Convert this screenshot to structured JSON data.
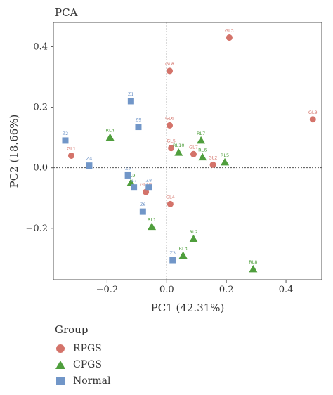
{
  "chart_data": {
    "type": "scatter",
    "title": "PCA",
    "xlabel": "PC1 (42.31%)",
    "ylabel": "PC2 (18.66%)",
    "xlim": [
      -0.38,
      0.52
    ],
    "ylim": [
      -0.37,
      0.48
    ],
    "xticks": [
      -0.2,
      0.0,
      0.2,
      0.4
    ],
    "xtick_labels": [
      "−0.2",
      "0.0",
      "0.2",
      "0.4"
    ],
    "yticks": [
      -0.2,
      0.0,
      0.2,
      0.4
    ],
    "ytick_labels": [
      "−0.2",
      "0.0",
      "0.2",
      "0.4"
    ],
    "grid": false,
    "reference_lines": {
      "x": 0,
      "y": 0,
      "style": "dotted"
    },
    "legend": {
      "title": "Group",
      "placement": "bottom-left"
    },
    "series": [
      {
        "name": "RPGS",
        "marker": "circle",
        "color": "#d4736a",
        "points": [
          {
            "label": "GL3",
            "x": 0.21,
            "y": 0.43
          },
          {
            "label": "GL8",
            "x": 0.01,
            "y": 0.32
          },
          {
            "label": "GL6",
            "x": 0.01,
            "y": 0.14
          },
          {
            "label": "GL9",
            "x": 0.49,
            "y": 0.16
          },
          {
            "label": "GL1",
            "x": -0.32,
            "y": 0.04
          },
          {
            "label": "GL5",
            "x": 0.015,
            "y": 0.065
          },
          {
            "label": "GL7",
            "x": 0.09,
            "y": 0.045
          },
          {
            "label": "GL2",
            "x": 0.155,
            "y": 0.01
          },
          {
            "label": "GL4",
            "x": 0.012,
            "y": -0.12
          },
          {
            "label": "GL10",
            "x": -0.07,
            "y": -0.08
          }
        ]
      },
      {
        "name": "CPGS",
        "marker": "triangle",
        "color": "#4f9e3c",
        "points": [
          {
            "label": "RL4",
            "x": -0.19,
            "y": 0.1
          },
          {
            "label": "RL7",
            "x": 0.115,
            "y": 0.09
          },
          {
            "label": "RL10",
            "x": 0.04,
            "y": 0.05
          },
          {
            "label": "RL6",
            "x": 0.12,
            "y": 0.035
          },
          {
            "label": "RL5",
            "x": 0.195,
            "y": 0.018
          },
          {
            "label": "RL9",
            "x": -0.12,
            "y": -0.05
          },
          {
            "label": "RL1",
            "x": -0.05,
            "y": -0.195
          },
          {
            "label": "RL2",
            "x": 0.09,
            "y": -0.235
          },
          {
            "label": "RL3",
            "x": 0.055,
            "y": -0.29
          },
          {
            "label": "RL8",
            "x": 0.29,
            "y": -0.335
          }
        ]
      },
      {
        "name": "Normal",
        "marker": "square",
        "color": "#7196c8",
        "points": [
          {
            "label": "Z1",
            "x": -0.12,
            "y": 0.22
          },
          {
            "label": "Z9",
            "x": -0.095,
            "y": 0.135
          },
          {
            "label": "Z2",
            "x": -0.34,
            "y": 0.09
          },
          {
            "label": "Z4",
            "x": -0.26,
            "y": 0.007
          },
          {
            "label": "Z5",
            "x": -0.13,
            "y": -0.025
          },
          {
            "label": "Z7",
            "x": -0.11,
            "y": -0.065
          },
          {
            "label": "Z8",
            "x": -0.06,
            "y": -0.065
          },
          {
            "label": "Z6",
            "x": -0.08,
            "y": -0.145
          },
          {
            "label": "Z3",
            "x": 0.02,
            "y": -0.305
          }
        ]
      }
    ]
  }
}
